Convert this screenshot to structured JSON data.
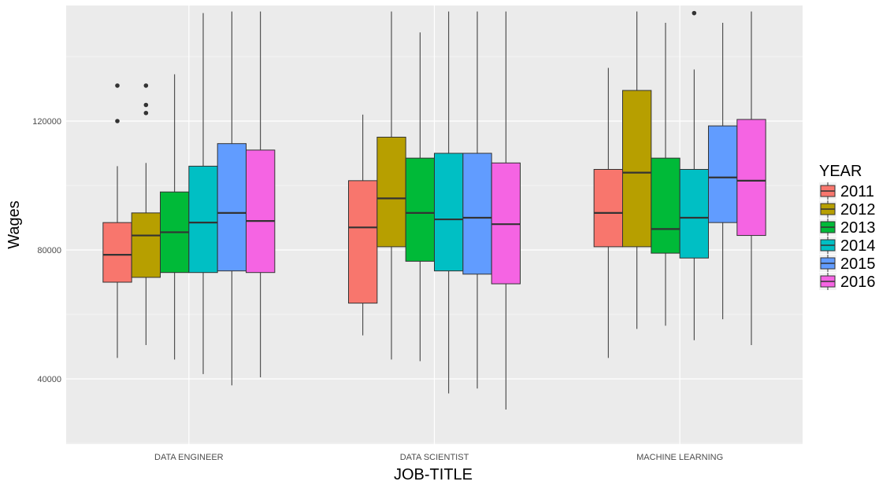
{
  "chart_data": {
    "type": "boxplot",
    "title": "",
    "xlabel": "JOB-TITLE",
    "ylabel": "Wages",
    "ylim": [
      20000,
      154000
    ],
    "yticks": [
      40000,
      80000,
      120000
    ],
    "ytick_labels": [
      "40000",
      "80000",
      "120000"
    ],
    "categories": [
      "DATA ENGINEER",
      "DATA SCIENTIST",
      "MACHINE LEARNING"
    ],
    "grid": true,
    "legend": {
      "title": "YEAR",
      "position": "right"
    },
    "series": [
      {
        "name": "2011",
        "color": "#F8766D",
        "boxes": [
          {
            "whisker_low": 46500,
            "q1": 70000,
            "median": 78500,
            "q3": 88500,
            "whisker_high": 106000,
            "outliers": [
              120000,
              131000
            ]
          },
          {
            "whisker_low": 53500,
            "q1": 63500,
            "median": 87000,
            "q3": 101500,
            "whisker_high": 122000,
            "outliers": []
          },
          {
            "whisker_low": 46500,
            "q1": 81000,
            "median": 91500,
            "q3": 105000,
            "whisker_high": 136500,
            "outliers": []
          }
        ]
      },
      {
        "name": "2012",
        "color": "#B79F00",
        "boxes": [
          {
            "whisker_low": 50500,
            "q1": 71500,
            "median": 84500,
            "q3": 91500,
            "whisker_high": 107000,
            "outliers": [
              122500,
              125000,
              131000
            ]
          },
          {
            "whisker_low": 46000,
            "q1": 81000,
            "median": 96000,
            "q3": 115000,
            "whisker_high": 154000,
            "outliers": []
          },
          {
            "whisker_low": 55500,
            "q1": 81000,
            "median": 104000,
            "q3": 129500,
            "whisker_high": 154000,
            "outliers": []
          }
        ]
      },
      {
        "name": "2013",
        "color": "#00BA38",
        "boxes": [
          {
            "whisker_low": 46000,
            "q1": 73000,
            "median": 85500,
            "q3": 98000,
            "whisker_high": 134500,
            "outliers": []
          },
          {
            "whisker_low": 45500,
            "q1": 76500,
            "median": 91500,
            "q3": 108500,
            "whisker_high": 147500,
            "outliers": []
          },
          {
            "whisker_low": 56500,
            "q1": 79000,
            "median": 86500,
            "q3": 108500,
            "whisker_high": 150500,
            "outliers": []
          }
        ]
      },
      {
        "name": "2014",
        "color": "#00BFC4",
        "boxes": [
          {
            "whisker_low": 41500,
            "q1": 73000,
            "median": 88500,
            "q3": 106000,
            "whisker_high": 153500,
            "outliers": []
          },
          {
            "whisker_low": 35500,
            "q1": 73500,
            "median": 89500,
            "q3": 110000,
            "whisker_high": 154000,
            "outliers": []
          },
          {
            "whisker_low": 52000,
            "q1": 77500,
            "median": 90000,
            "q3": 105000,
            "whisker_high": 136000,
            "outliers": [
              153500
            ]
          }
        ]
      },
      {
        "name": "2015",
        "color": "#619CFF",
        "boxes": [
          {
            "whisker_low": 38000,
            "q1": 73500,
            "median": 91500,
            "q3": 113000,
            "whisker_high": 154000,
            "outliers": []
          },
          {
            "whisker_low": 37000,
            "q1": 72500,
            "median": 90000,
            "q3": 110000,
            "whisker_high": 154000,
            "outliers": []
          },
          {
            "whisker_low": 58500,
            "q1": 88500,
            "median": 102500,
            "q3": 118500,
            "whisker_high": 150500,
            "outliers": []
          }
        ]
      },
      {
        "name": "2016",
        "color": "#F564E3",
        "boxes": [
          {
            "whisker_low": 40500,
            "q1": 73000,
            "median": 89000,
            "q3": 111000,
            "whisker_high": 154000,
            "outliers": []
          },
          {
            "whisker_low": 30500,
            "q1": 69500,
            "median": 88000,
            "q3": 107000,
            "whisker_high": 154000,
            "outliers": []
          },
          {
            "whisker_low": 50500,
            "q1": 84500,
            "median": 101500,
            "q3": 120500,
            "whisker_high": 154000,
            "outliers": []
          }
        ]
      }
    ]
  }
}
